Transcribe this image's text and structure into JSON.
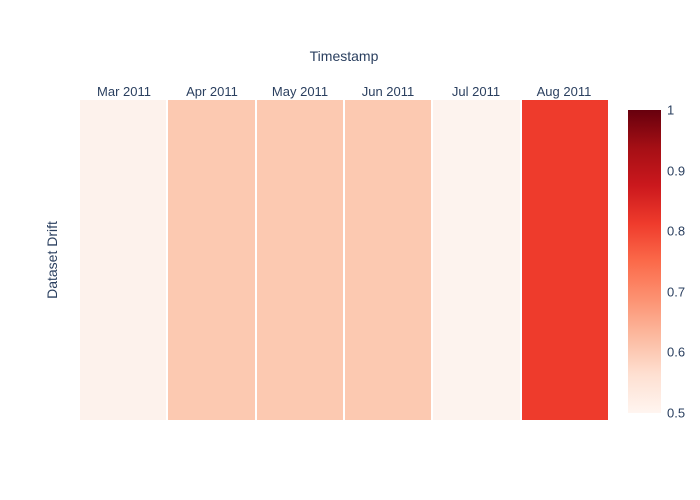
{
  "figure": {
    "x_axis_title": "Timestamp",
    "y_axis_title": "Dataset Drift"
  },
  "chart_data": {
    "type": "heatmap",
    "title": "Timestamp",
    "xlabel": "Timestamp",
    "ylabel": "Dataset Drift",
    "categories": [
      "Mar 2011",
      "Apr 2011",
      "May 2011",
      "Jun 2011",
      "Jul 2011",
      "Aug 2011"
    ],
    "rows": [
      "Dataset Drift"
    ],
    "values": [
      [
        0.51,
        0.6,
        0.6,
        0.6,
        0.51,
        0.8
      ]
    ],
    "zmin": 0.5,
    "zmax": 1,
    "colorscale": "Reds",
    "grid": false,
    "legend_position": "right-colorbar",
    "cell_colors": [
      "#fdf2ec",
      "#fcc9b1",
      "#fcc9b1",
      "#fcc9b1",
      "#fdf3ee",
      "#ee3b2c"
    ]
  },
  "colorbar": {
    "ticks": [
      "1",
      "0.9",
      "0.8",
      "0.7",
      "0.6",
      "0.5"
    ],
    "gradient_top_to_bottom": [
      "#67000d",
      "#a50f15",
      "#cb181d",
      "#ef3b2c",
      "#fb6a4a",
      "#fc9272",
      "#fcbba1",
      "#fee0d2",
      "#fff5f0"
    ]
  },
  "colors": {
    "text": "#2a3f5f",
    "background": "#ffffff"
  }
}
